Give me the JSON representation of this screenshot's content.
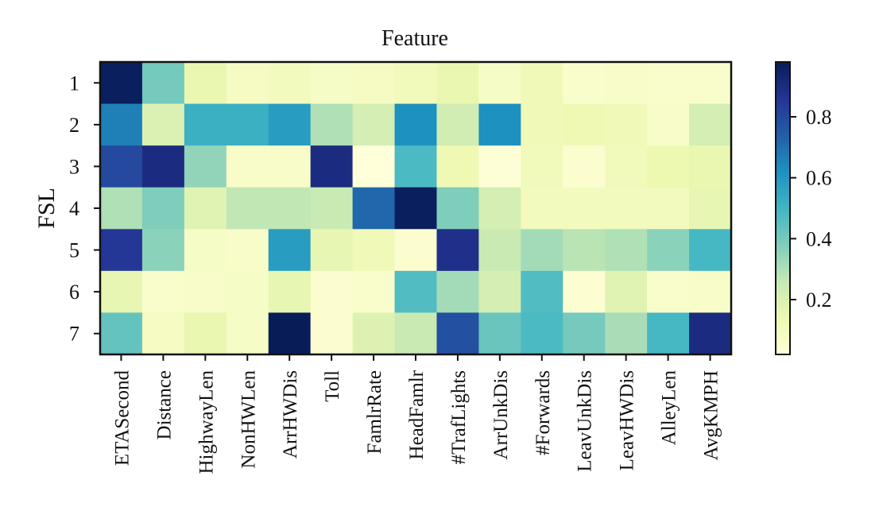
{
  "chart_data": {
    "type": "heatmap",
    "title": "Feature",
    "ylabel": "FSL",
    "x_categories": [
      "ETASecond",
      "Distance",
      "HighwayLen",
      "NonHWLen",
      "ArrHWDis",
      "Toll",
      "FamlrRate",
      "HeadFamlr",
      "#TrafLights",
      "ArrUnkDis",
      "#Forwards",
      "LeavUnkDis",
      "LeavHWDis",
      "AlleyLen",
      "AvgKMPH"
    ],
    "y_categories": [
      "1",
      "2",
      "3",
      "4",
      "5",
      "6",
      "7"
    ],
    "values": [
      [
        0.97,
        0.4,
        0.15,
        0.09,
        0.1,
        0.08,
        0.09,
        0.11,
        0.15,
        0.08,
        0.12,
        0.06,
        0.07,
        0.06,
        0.06
      ],
      [
        0.66,
        0.2,
        0.52,
        0.52,
        0.58,
        0.3,
        0.22,
        0.62,
        0.23,
        0.62,
        0.12,
        0.13,
        0.12,
        0.07,
        0.22
      ],
      [
        0.8,
        0.9,
        0.35,
        0.07,
        0.07,
        0.9,
        0.02,
        0.48,
        0.13,
        0.03,
        0.11,
        0.05,
        0.11,
        0.14,
        0.15
      ],
      [
        0.3,
        0.38,
        0.18,
        0.27,
        0.27,
        0.25,
        0.72,
        0.97,
        0.38,
        0.22,
        0.1,
        0.1,
        0.1,
        0.1,
        0.16
      ],
      [
        0.85,
        0.36,
        0.08,
        0.07,
        0.58,
        0.16,
        0.12,
        0.05,
        0.88,
        0.25,
        0.32,
        0.28,
        0.3,
        0.36,
        0.49
      ],
      [
        0.16,
        0.06,
        0.07,
        0.08,
        0.16,
        0.05,
        0.06,
        0.47,
        0.32,
        0.22,
        0.47,
        0.04,
        0.18,
        0.06,
        0.07
      ],
      [
        0.43,
        0.09,
        0.15,
        0.08,
        0.98,
        0.05,
        0.19,
        0.25,
        0.78,
        0.42,
        0.48,
        0.4,
        0.31,
        0.49,
        0.9
      ]
    ],
    "colormap": "YlGnBu",
    "colorbar": {
      "ticks": [
        0.2,
        0.4,
        0.6,
        0.8
      ],
      "range": [
        0.02,
        0.98
      ]
    }
  }
}
